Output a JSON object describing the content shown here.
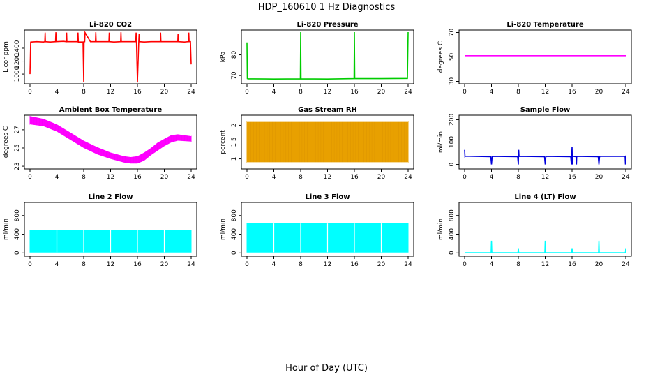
{
  "figure": {
    "title": "HDP_160610  1 Hz Diagnostics",
    "xlabel": "Hour of Day (UTC)"
  },
  "chart_data": [
    {
      "type": "line",
      "title": "Li-820 CO2",
      "ylabel": "Licor ppm",
      "color": "#ff0000",
      "xlim": [
        0,
        24
      ],
      "ylim": [
        850,
        1680
      ],
      "xticks": [
        0,
        4,
        8,
        12,
        16,
        20,
        24
      ],
      "yticks": [
        1000,
        1200,
        1400
      ],
      "x": [
        0.0,
        0.1,
        0.15,
        0.2,
        1.0,
        2.0,
        2.2,
        2.25,
        2.3,
        3.0,
        3.8,
        3.85,
        3.9,
        5.0,
        5.4,
        5.45,
        5.5,
        6.0,
        7.1,
        7.15,
        7.2,
        7.9,
        8.0,
        8.05,
        8.15,
        8.2,
        9.0,
        9.75,
        9.8,
        9.85,
        11.0,
        11.75,
        11.8,
        11.85,
        12.5,
        13.5,
        13.55,
        13.6,
        15.0,
        15.75,
        15.8,
        15.85,
        16.0,
        16.2,
        16.25,
        16.3,
        17.0,
        18.0,
        19.0,
        19.4,
        19.45,
        19.5,
        21.0,
        22.0,
        22.05,
        22.1,
        23.0,
        23.6,
        23.65,
        23.7,
        23.9,
        24.0
      ],
      "y": [
        1000,
        1500,
        1490,
        1495,
        1500,
        1495,
        1500,
        1640,
        1500,
        1495,
        1500,
        1645,
        1500,
        1505,
        1500,
        1640,
        1500,
        1500,
        1500,
        1640,
        1495,
        1495,
        880,
        1500,
        1500,
        1640,
        1500,
        1500,
        1645,
        1500,
        1500,
        1500,
        1640,
        1500,
        1495,
        1500,
        1645,
        1500,
        1500,
        1500,
        1640,
        1500,
        870,
        1500,
        1620,
        1500,
        1495,
        1500,
        1500,
        1500,
        1640,
        1500,
        1500,
        1500,
        1620,
        1500,
        1495,
        1500,
        1640,
        1500,
        1500,
        1150
      ]
    },
    {
      "type": "line",
      "title": "Li-820 Pressure",
      "ylabel": "kPa",
      "color": "#00cc00",
      "xlim": [
        0,
        24
      ],
      "ylim": [
        66,
        92
      ],
      "xticks": [
        0,
        4,
        8,
        12,
        16,
        20,
        24
      ],
      "yticks": [
        70,
        80
      ],
      "x": [
        0.0,
        0.05,
        0.15,
        1.0,
        4.0,
        7.95,
        8.0,
        8.05,
        12.0,
        15.95,
        16.0,
        16.05,
        20.0,
        23.9,
        24.0
      ],
      "y": [
        86,
        68.5,
        68.4,
        68.4,
        68.3,
        68.4,
        91,
        68.4,
        68.3,
        68.5,
        91,
        68.5,
        68.5,
        68.6,
        91
      ]
    },
    {
      "type": "line",
      "title": "Li-820 Temperature",
      "ylabel": "degrees C",
      "color": "#ff00ff",
      "xlim": [
        0,
        24
      ],
      "ylim": [
        28,
        72
      ],
      "xticks": [
        0,
        4,
        8,
        12,
        16,
        20,
        24
      ],
      "yticks": [
        30,
        50,
        70
      ],
      "x": [
        0,
        24
      ],
      "y": [
        51,
        51
      ]
    },
    {
      "type": "area",
      "title": "Ambient Box Temperature",
      "ylabel": "degrees C",
      "color": "#ff00ff",
      "xlim": [
        0,
        24
      ],
      "ylim": [
        22.7,
        28.6
      ],
      "xticks": [
        0,
        4,
        8,
        12,
        16,
        20,
        24
      ],
      "yticks": [
        23,
        25,
        27
      ],
      "x": [
        0,
        2,
        4,
        6,
        8,
        10,
        12,
        14,
        15,
        16,
        17,
        18,
        19,
        20,
        21,
        22,
        24
      ],
      "y_low": [
        27.6,
        27.4,
        26.8,
        25.9,
        25.0,
        24.3,
        23.8,
        23.4,
        23.3,
        23.3,
        23.6,
        24.2,
        24.7,
        25.2,
        25.6,
        25.8,
        25.7
      ],
      "y_high": [
        28.5,
        28.2,
        27.6,
        26.7,
        25.8,
        25.1,
        24.5,
        24.1,
        24.0,
        24.1,
        24.5,
        25.0,
        25.6,
        26.0,
        26.4,
        26.5,
        26.3
      ]
    },
    {
      "type": "area",
      "title": "Gas Stream RH",
      "ylabel": "percent",
      "color": "#e8a000",
      "xlim": [
        0,
        24
      ],
      "ylim": [
        0.7,
        2.3
      ],
      "xticks": [
        0,
        4,
        8,
        12,
        16,
        20,
        24
      ],
      "yticks": [
        1.0,
        1.5,
        2.0
      ],
      "x": [
        0,
        24
      ],
      "y_low": [
        0.9,
        0.9
      ],
      "y_high": [
        2.1,
        2.1
      ]
    },
    {
      "type": "line",
      "title": "Sample Flow",
      "ylabel": "ml/min",
      "color": "#0000dd",
      "xlim": [
        0,
        24
      ],
      "ylim": [
        -20,
        220
      ],
      "xticks": [
        0,
        4,
        8,
        12,
        16,
        20,
        24
      ],
      "yticks": [
        0,
        100,
        200
      ],
      "x": [
        0.0,
        0.05,
        0.1,
        3.9,
        4.0,
        4.1,
        7.9,
        8.0,
        8.05,
        8.1,
        11.9,
        12.0,
        12.1,
        15.8,
        15.9,
        16.0,
        16.05,
        16.1,
        16.6,
        16.65,
        16.7,
        19.9,
        20.0,
        20.1,
        23.9,
        23.95,
        24.0
      ],
      "y": [
        65,
        35,
        37,
        35,
        0,
        36,
        35,
        0,
        65,
        36,
        35,
        0,
        36,
        35,
        0,
        78,
        0,
        36,
        35,
        0,
        36,
        35,
        0,
        36,
        36,
        0,
        40
      ]
    },
    {
      "type": "area",
      "title": "Line 2 Flow",
      "ylabel": "ml/min",
      "color": "#00ffff",
      "xlim": [
        0,
        24
      ],
      "ylim": [
        -70,
        1080
      ],
      "xticks": [
        0,
        4,
        8,
        12,
        16,
        20,
        24
      ],
      "yticks": [
        0,
        400,
        800
      ],
      "x": [
        0,
        24
      ],
      "y_low": [
        15,
        15
      ],
      "y_high": [
        490,
        490
      ],
      "gaps": [
        4,
        8,
        12,
        16,
        20
      ]
    },
    {
      "type": "area",
      "title": "Line 3 Flow",
      "ylabel": "ml/min",
      "color": "#00ffff",
      "xlim": [
        0,
        24
      ],
      "ylim": [
        -70,
        1080
      ],
      "xticks": [
        0,
        4,
        8,
        12,
        16,
        20,
        24
      ],
      "yticks": [
        0,
        400,
        800
      ],
      "x": [
        0,
        24
      ],
      "y_low": [
        15,
        15
      ],
      "y_high": [
        630,
        630
      ],
      "gaps": [
        4,
        8,
        12,
        16,
        20
      ]
    },
    {
      "type": "line",
      "title": "Line 4 (LT) Flow",
      "ylabel": "ml/min",
      "color": "#00ffff",
      "xlim": [
        0,
        24
      ],
      "ylim": [
        -70,
        1080
      ],
      "xticks": [
        0,
        4,
        8,
        12,
        16,
        20,
        24
      ],
      "yticks": [
        0,
        400,
        800
      ],
      "x": [
        0.0,
        3.95,
        4.0,
        4.05,
        7.95,
        8.0,
        8.05,
        11.95,
        12.0,
        12.05,
        15.95,
        16.0,
        16.05,
        19.95,
        20.0,
        20.05,
        23.95,
        24.0
      ],
      "y": [
        5,
        5,
        260,
        5,
        5,
        100,
        5,
        5,
        260,
        5,
        5,
        100,
        5,
        5,
        260,
        5,
        5,
        100
      ]
    }
  ]
}
